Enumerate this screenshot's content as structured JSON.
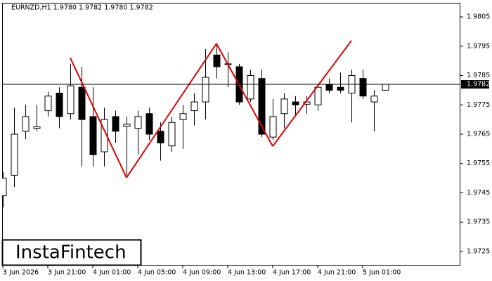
{
  "chart_data": {
    "type": "candlestick",
    "title": "EURNZD,H1  1.9780 1.9782 1.9780 1.9782",
    "categories": [
      "3 Jun 2026",
      null,
      null,
      null,
      "3 Jun 21:00",
      null,
      null,
      null,
      "4 Jun 01:00",
      null,
      null,
      null,
      "4 Jun 05:00",
      null,
      null,
      null,
      "4 Jun 09:00",
      null,
      null,
      null,
      "4 Jun 13:00",
      null,
      null,
      null,
      "4 Jun 17:00",
      null,
      null,
      null,
      "4 Jun 21:00",
      null,
      null,
      null,
      "5 Jun 01:00",
      null,
      null
    ],
    "open": [
      1.9744,
      1.9751,
      1.9766,
      1.9767,
      1.9773,
      1.9779,
      1.9772,
      1.9781,
      1.9771,
      1.9759,
      1.9771,
      1.97676,
      1.9767,
      1.9772,
      1.9766,
      1.9761,
      1.977,
      1.9773,
      1.9776,
      1.9792,
      1.9789,
      1.9788,
      1.9777,
      1.9784,
      1.9764,
      1.9772,
      1.9776,
      1.97752,
      1.9775,
      1.9782,
      1.9781,
      1.9779,
      1.9784,
      1.9776,
      1.978
    ],
    "high": [
      1.9752,
      1.9774,
      1.9775,
      1.9775,
      1.97795,
      1.9781,
      1.9789,
      1.9788,
      1.9781,
      1.9774,
      1.9773,
      1.9771,
      1.9773,
      1.9774,
      1.9769,
      1.9771,
      1.9775,
      1.9779,
      1.9794,
      1.9796,
      1.9793,
      1.9789,
      1.9787,
      1.9787,
      1.9777,
      1.9779,
      1.9778,
      1.9778,
      1.9782,
      1.9784,
      1.9786,
      1.9787,
      1.9787,
      1.978,
      1.9782
    ],
    "low": [
      1.974,
      1.9747,
      1.97633,
      1.9766,
      1.9771,
      1.9767,
      1.977,
      1.9754,
      1.9754,
      1.9754,
      1.9762,
      1.9751,
      1.9758,
      1.9763,
      1.9756,
      1.9759,
      1.976,
      1.9768,
      1.977,
      1.9784,
      1.9781,
      1.9775,
      1.9776,
      1.9764,
      1.9763,
      1.9767,
      1.9771,
      1.9772,
      1.9773,
      1.9779,
      1.9779,
      1.9769,
      1.9777,
      1.9766,
      1.978
    ],
    "close": [
      1.975,
      1.9765,
      1.9771,
      1.97675,
      1.9778,
      1.9771,
      1.97815,
      1.977,
      1.9758,
      1.977,
      1.9766,
      1.97684,
      1.9771,
      1.9765,
      1.9762,
      1.9769,
      1.9772,
      1.9776,
      1.97844,
      1.9788,
      1.97888,
      1.9776,
      1.9785,
      1.9765,
      1.9771,
      1.9777,
      1.9775,
      1.9776,
      1.9781,
      1.978,
      1.978,
      1.9785,
      1.9778,
      1.9778,
      1.9782
    ],
    "ylim": [
      1.97202,
      1.98098
    ],
    "yticks": [
      1.9725,
      1.9735,
      1.9745,
      1.9755,
      1.9765,
      1.9775,
      1.9785,
      1.9795,
      1.9805
    ],
    "current_price": {
      "value": 1.9782,
      "label": "1.9782"
    },
    "pattern": {
      "color": "#e00000",
      "x": [
        6,
        11,
        19,
        24,
        31
      ],
      "y": [
        1.9791,
        1.97502,
        1.97959,
        1.97609,
        1.97969
      ]
    },
    "watermark": "InstaFintech"
  }
}
